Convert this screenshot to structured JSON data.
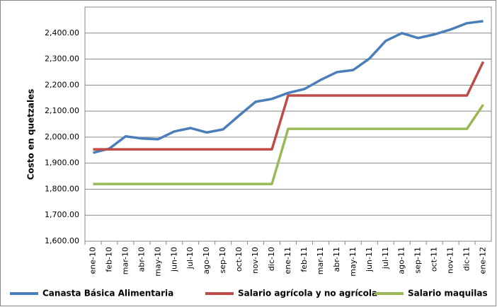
{
  "chart_data": {
    "type": "line",
    "y_label": "Costo en quetzales",
    "categories": [
      "ene-10",
      "feb-10",
      "mar-10",
      "abr-10",
      "may-10",
      "jun-10",
      "jul-10",
      "ago-10",
      "sep-10",
      "oct-10",
      "nov-10",
      "dic-10",
      "ene-11",
      "feb-11",
      "mar-11",
      "abr-11",
      "may-11",
      "jun-11",
      "jul-11",
      "ago-11",
      "sep-11",
      "oct-11",
      "nov-11",
      "dic-11",
      "ene-12"
    ],
    "series": [
      {
        "name": "Canasta Básica Alimentaria",
        "color": "#4a7ebb",
        "values": [
          1940,
          1956,
          2003,
          1995,
          1992,
          2022,
          2035,
          2018,
          2030,
          2084,
          2136,
          2147,
          2170,
          2185,
          2220,
          2250,
          2258,
          2302,
          2370,
          2400,
          2381,
          2395,
          2414,
          2438,
          2446
        ]
      },
      {
        "name": "Salario agrícola y no agrícola",
        "color": "#be4b48",
        "values": [
          1953,
          1953,
          1953,
          1953,
          1953,
          1953,
          1953,
          1953,
          1953,
          1953,
          1953,
          1953,
          2160,
          2160,
          2160,
          2160,
          2160,
          2160,
          2160,
          2160,
          2160,
          2160,
          2160,
          2160,
          2290
        ]
      },
      {
        "name": "Salario maquilas",
        "color": "#98b954",
        "values": [
          1820,
          1820,
          1820,
          1820,
          1820,
          1820,
          1820,
          1820,
          1820,
          1820,
          1820,
          1820,
          2032,
          2032,
          2032,
          2032,
          2032,
          2032,
          2032,
          2032,
          2032,
          2032,
          2032,
          2032,
          2125
        ]
      }
    ],
    "ylim": [
      1600,
      2500
    ],
    "yticks": [
      {
        "value": 1600,
        "label": "1,600.00"
      },
      {
        "value": 1700,
        "label": "1,700.00"
      },
      {
        "value": 1800,
        "label": "1,800.00"
      },
      {
        "value": 1900,
        "label": "1,900.00"
      },
      {
        "value": 2000,
        "label": "2,000.00"
      },
      {
        "value": 2100,
        "label": "2,100.00"
      },
      {
        "value": 2200,
        "label": "2,200.00"
      },
      {
        "value": 2300,
        "label": "2,300.00"
      },
      {
        "value": 2400,
        "label": "2,400.00"
      }
    ],
    "grid": true
  }
}
